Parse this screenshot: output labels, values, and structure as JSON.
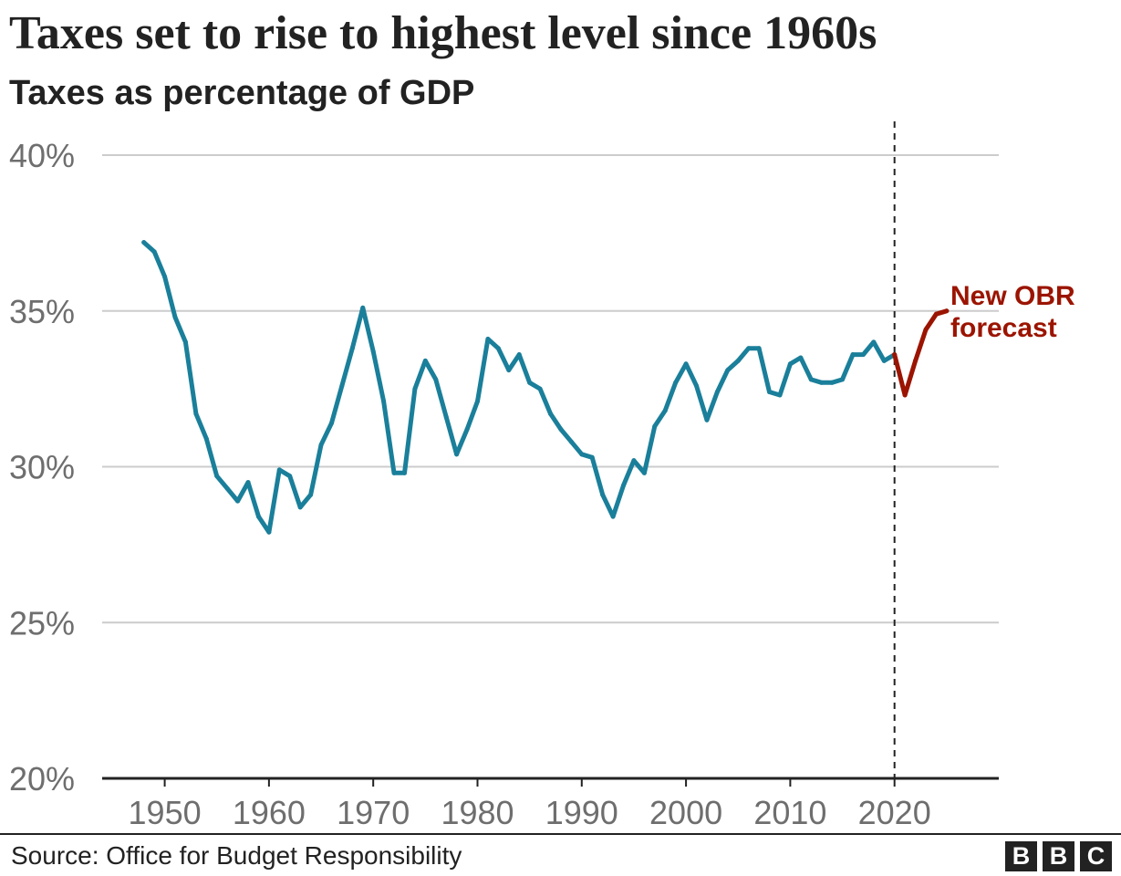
{
  "header": {
    "title": "Taxes set to rise to highest level since 1960s",
    "subtitle": "Taxes as percentage of GDP"
  },
  "footer": {
    "source": "Source: Office for Budget Responsibility",
    "logo": "BBC"
  },
  "chart_data": {
    "type": "line",
    "title": "Taxes set to rise to highest level since 1960s",
    "subtitle": "Taxes as percentage of GDP",
    "xlabel": "",
    "ylabel": "",
    "ylim": [
      20,
      40
    ],
    "xlim": [
      1944,
      2030
    ],
    "y_ticks": [
      20,
      25,
      30,
      35,
      40
    ],
    "y_tick_labels": [
      "20%",
      "25%",
      "30%",
      "35%",
      "40%"
    ],
    "x_ticks": [
      1950,
      1960,
      1970,
      1980,
      1990,
      2000,
      2010,
      2020
    ],
    "x_tick_labels": [
      "1950",
      "1960",
      "1970",
      "1980",
      "1990",
      "2000",
      "2010",
      "2020"
    ],
    "grid": "horizontal",
    "forecast_divider_x": 2020,
    "colors": {
      "actual": "#1a7f9a",
      "forecast": "#9b1400",
      "grid": "#cccccc",
      "axis": "#222222"
    },
    "annotation": {
      "lines": [
        "New OBR",
        "forecast"
      ],
      "color": "#9b1400"
    },
    "series": [
      {
        "style": "actual",
        "x": [
          1948,
          1949,
          1950,
          1951,
          1952,
          1953,
          1954,
          1955,
          1956,
          1957,
          1958,
          1959,
          1960,
          1961,
          1962,
          1963,
          1964,
          1965,
          1966,
          1967,
          1968,
          1969,
          1970,
          1971,
          1972,
          1973,
          1974,
          1975,
          1976,
          1977,
          1978,
          1979,
          1980,
          1981,
          1982,
          1983,
          1984,
          1985,
          1986,
          1987,
          1988,
          1989,
          1990,
          1991,
          1992,
          1993,
          1994,
          1995,
          1996,
          1997,
          1998,
          1999,
          2000,
          2001,
          2002,
          2003,
          2004,
          2005,
          2006,
          2007,
          2008,
          2009,
          2010,
          2011,
          2012,
          2013,
          2014,
          2015,
          2016,
          2017,
          2018,
          2019,
          2020
        ],
        "values": [
          37.2,
          36.9,
          36.1,
          34.8,
          34.0,
          31.7,
          30.9,
          29.7,
          29.3,
          28.9,
          29.5,
          28.4,
          27.9,
          29.9,
          29.7,
          28.7,
          29.1,
          30.7,
          31.4,
          32.6,
          33.8,
          35.1,
          33.7,
          32.1,
          29.8,
          29.8,
          32.5,
          33.4,
          32.8,
          31.6,
          30.4,
          31.2,
          32.1,
          34.1,
          33.8,
          33.1,
          33.6,
          32.7,
          32.5,
          31.7,
          31.2,
          30.8,
          30.4,
          30.3,
          29.1,
          28.4,
          29.4,
          30.2,
          29.8,
          31.3,
          31.8,
          32.7,
          33.3,
          32.6,
          31.5,
          32.4,
          33.1,
          33.4,
          33.8,
          33.8,
          32.4,
          32.3,
          33.3,
          33.5,
          32.8,
          32.7,
          32.7,
          32.8,
          33.6,
          33.6,
          34.0,
          33.4,
          33.6
        ]
      },
      {
        "style": "forecast",
        "x": [
          2020,
          2021,
          2022,
          2023,
          2024,
          2025
        ],
        "values": [
          33.6,
          32.3,
          33.4,
          34.4,
          34.9,
          35.0
        ]
      }
    ]
  }
}
